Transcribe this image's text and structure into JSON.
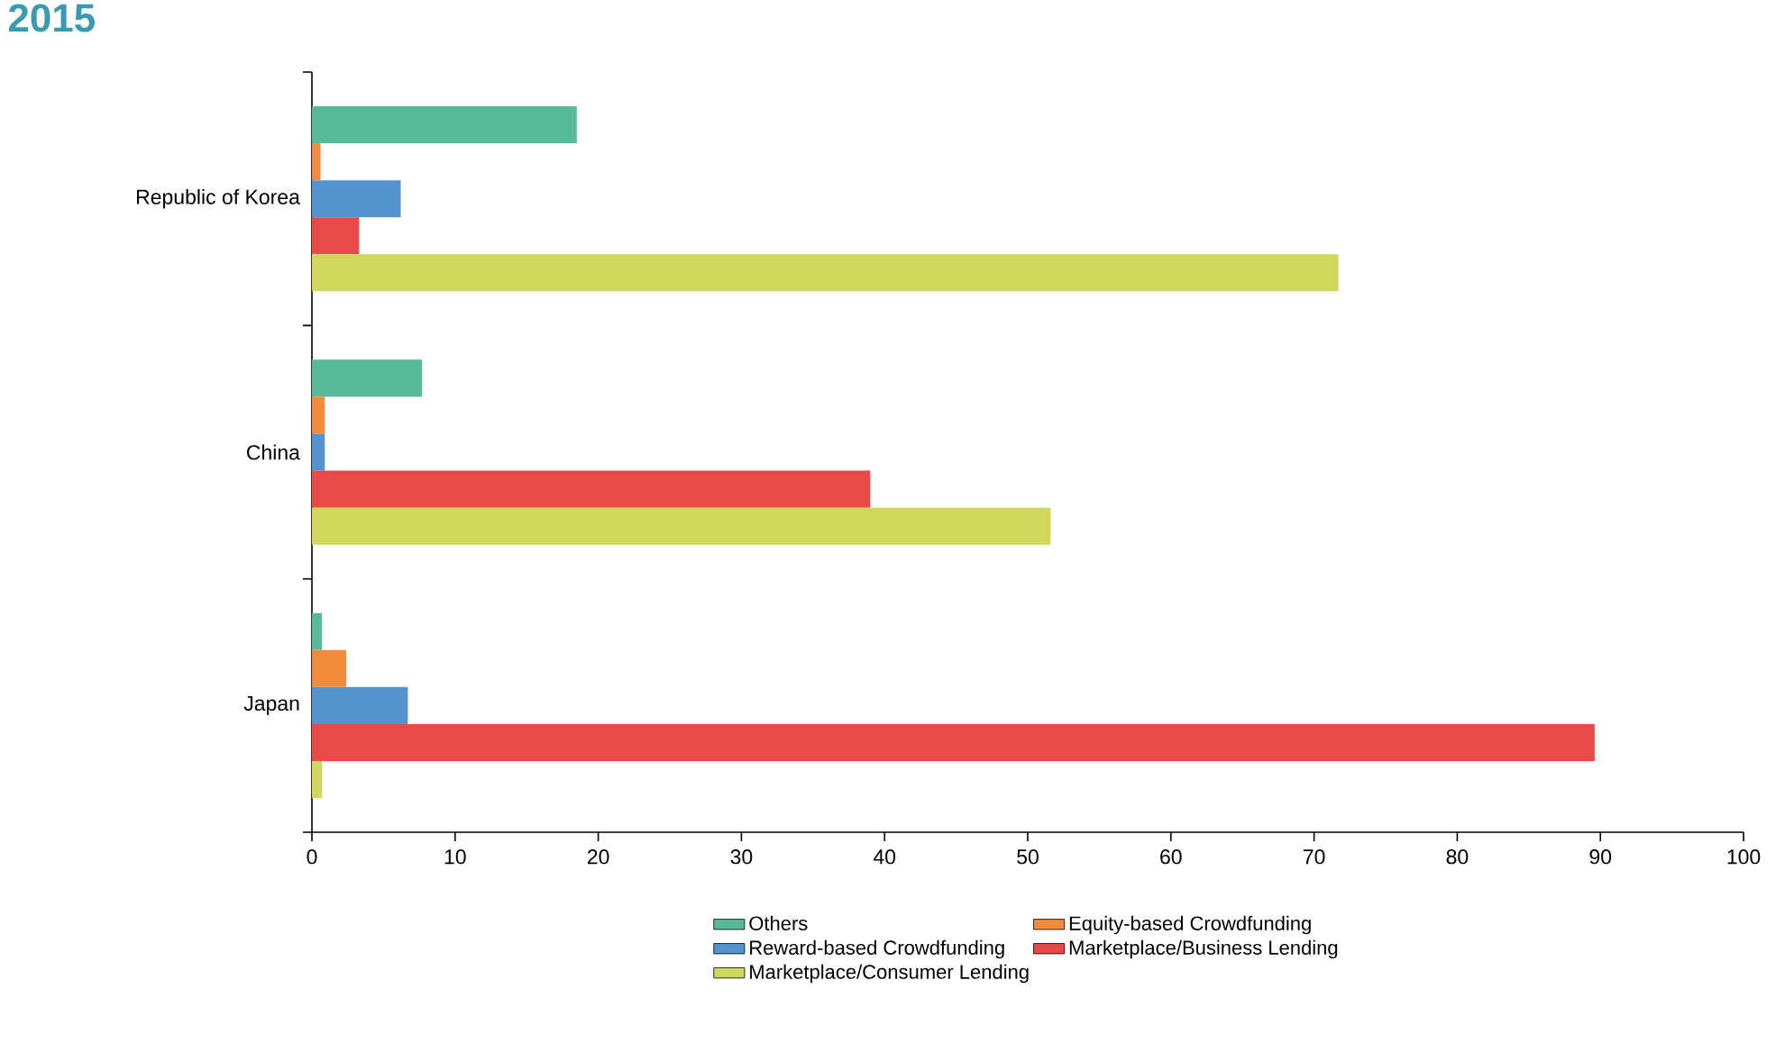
{
  "chart_data": {
    "type": "bar",
    "orientation": "horizontal",
    "title": "2015",
    "categories": [
      "Republic of Korea",
      "China",
      "Japan"
    ],
    "series": [
      {
        "name": "Others",
        "color": "#57bb9a",
        "values": [
          18.5,
          7.7,
          0.7
        ]
      },
      {
        "name": "Equity-based Crowdfunding",
        "color": "#f28b3c",
        "values": [
          0.6,
          0.9,
          2.4
        ]
      },
      {
        "name": "Reward-based Crowdfunding",
        "color": "#5592d0",
        "values": [
          6.2,
          0.9,
          6.7
        ]
      },
      {
        "name": "Marketplace/Business Lending",
        "color": "#e84a47",
        "values": [
          3.3,
          39.0,
          89.6
        ]
      },
      {
        "name": "Marketplace/Consumer Lending",
        "color": "#cfd85a",
        "values": [
          71.7,
          51.6,
          0.7
        ]
      }
    ],
    "xlim": [
      0,
      100
    ],
    "xticks": [
      0,
      10,
      20,
      30,
      40,
      50,
      60,
      70,
      80,
      90,
      100
    ],
    "grid": false,
    "legend": "bottom"
  }
}
